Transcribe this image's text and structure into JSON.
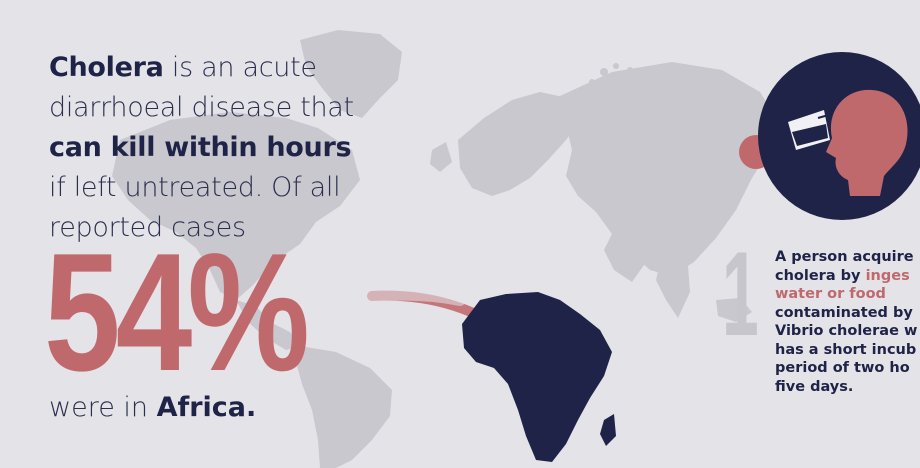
{
  "intro": {
    "p1_bold": "Cholera",
    "p1_rest": " is an acute",
    "p2": "diarrhoeal disease that",
    "p3_bold": "can kill within hours",
    "p4": "if left untreated. Of all",
    "p5": "reported cases"
  },
  "stat": {
    "value": "54%"
  },
  "outro": {
    "prefix": "were in ",
    "bold": "Africa."
  },
  "step": {
    "number": "1",
    "line1": "A person acquire",
    "line2_prefix": "cholera by ",
    "line2_highlight": "inges",
    "line3_highlight": "water or food",
    "line4": "contaminated by",
    "line5": "Vibrio cholerae w",
    "line6": "has a short incub",
    "line7": "period of two ho",
    "line8": "five days."
  },
  "colors": {
    "background": "#e4e3e8",
    "map_land": "#c9c8ce",
    "navy": "#1f2347",
    "accent": "#c0696d"
  },
  "icons": {
    "map": "world-map-icon",
    "africa": "africa-highlight-icon",
    "person": "person-drinking-icon"
  }
}
